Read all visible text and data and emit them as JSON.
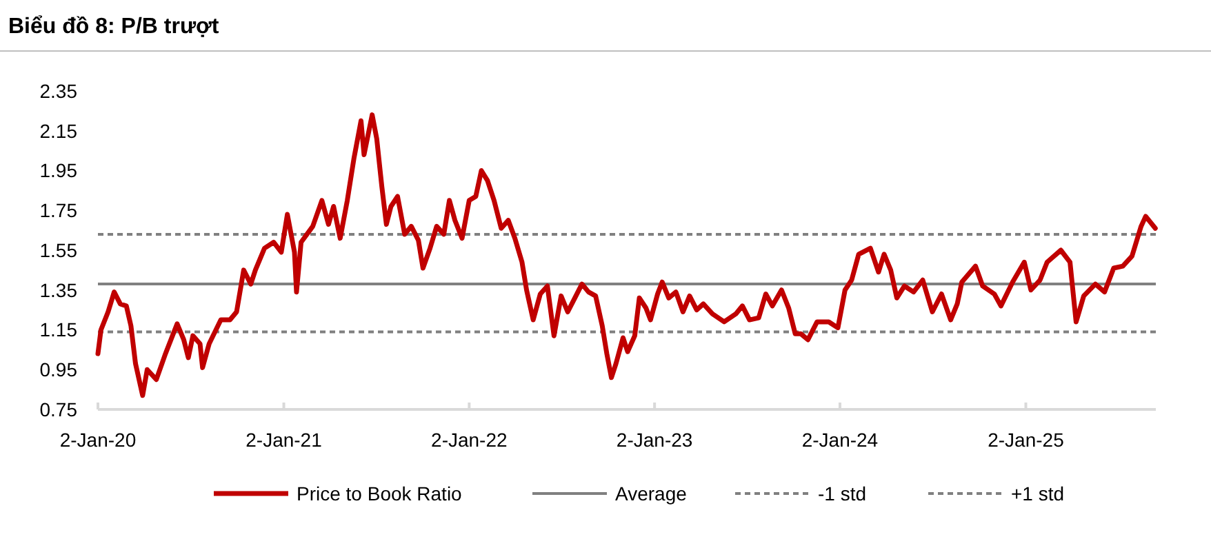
{
  "chart_data": {
    "type": "line",
    "title": "Biểu đồ 8: P/B trượt",
    "x": [
      "2020-01-02",
      "2020-01-08",
      "2020-01-22",
      "2020-02-03",
      "2020-02-15",
      "2020-02-27",
      "2020-03-07",
      "2020-03-16",
      "2020-03-30",
      "2020-04-08",
      "2020-04-26",
      "2020-05-14",
      "2020-06-06",
      "2020-06-19",
      "2020-06-28",
      "2020-07-07",
      "2020-07-21",
      "2020-07-26",
      "2020-08-08",
      "2020-08-31",
      "2020-09-18",
      "2020-10-01",
      "2020-10-15",
      "2020-10-29",
      "2020-11-07",
      "2020-11-25",
      "2020-12-13",
      "2020-12-28",
      "2021-01-09",
      "2021-01-23",
      "2021-01-27",
      "2021-02-05",
      "2021-02-28",
      "2021-03-18",
      "2021-03-31",
      "2021-04-10",
      "2021-04-23",
      "2021-05-07",
      "2021-05-20",
      "2021-06-03",
      "2021-06-09",
      "2021-06-25",
      "2021-07-04",
      "2021-07-14",
      "2021-07-23",
      "2021-08-01",
      "2021-08-14",
      "2021-08-28",
      "2021-09-10",
      "2021-09-24",
      "2021-10-03",
      "2021-10-17",
      "2021-10-30",
      "2021-11-13",
      "2021-11-24",
      "2021-12-05",
      "2021-12-19",
      "2022-01-02",
      "2022-01-15",
      "2022-01-26",
      "2022-02-07",
      "2022-02-20",
      "2022-03-06",
      "2022-03-20",
      "2022-04-02",
      "2022-04-16",
      "2022-04-25",
      "2022-05-08",
      "2022-05-22",
      "2022-06-05",
      "2022-06-18",
      "2022-07-02",
      "2022-07-15",
      "2022-07-29",
      "2022-08-12",
      "2022-08-25",
      "2022-09-08",
      "2022-09-21",
      "2022-09-30",
      "2022-10-09",
      "2022-10-18",
      "2022-11-01",
      "2022-11-10",
      "2022-11-24",
      "2022-12-03",
      "2022-12-16",
      "2022-12-25",
      "2023-01-08",
      "2023-01-17",
      "2023-01-30",
      "2023-02-13",
      "2023-02-27",
      "2023-03-12",
      "2023-03-26",
      "2023-04-08",
      "2023-04-26",
      "2023-05-19",
      "2023-06-11",
      "2023-06-24",
      "2023-07-08",
      "2023-07-26",
      "2023-08-09",
      "2023-08-22",
      "2023-09-09",
      "2023-09-23",
      "2023-10-06",
      "2023-10-17",
      "2023-10-31",
      "2023-11-18",
      "2023-12-11",
      "2023-12-29",
      "2024-01-12",
      "2024-01-25",
      "2024-02-08",
      "2024-03-02",
      "2024-03-18",
      "2024-03-29",
      "2024-04-11",
      "2024-04-23",
      "2024-05-08",
      "2024-05-26",
      "2024-06-13",
      "2024-07-02",
      "2024-07-20",
      "2024-08-07",
      "2024-08-20",
      "2024-08-29",
      "2024-09-25",
      "2024-10-09",
      "2024-11-01",
      "2024-11-14",
      "2024-12-07",
      "2024-12-30",
      "2025-01-12",
      "2025-01-30",
      "2025-02-13",
      "2025-03-12",
      "2025-03-30",
      "2025-04-11",
      "2025-04-26",
      "2025-05-19",
      "2025-06-06",
      "2025-06-24",
      "2025-07-12",
      "2025-07-30",
      "2025-08-17",
      "2025-08-26",
      "2025-09-14"
    ],
    "series": [
      {
        "name": "Price to Book Ratio",
        "color": "#c00000",
        "values": [
          1.03,
          1.15,
          1.24,
          1.34,
          1.28,
          1.27,
          1.17,
          0.98,
          0.82,
          0.95,
          0.9,
          1.03,
          1.18,
          1.1,
          1.01,
          1.12,
          1.08,
          0.96,
          1.08,
          1.2,
          1.2,
          1.24,
          1.45,
          1.38,
          1.45,
          1.56,
          1.59,
          1.54,
          1.73,
          1.54,
          1.34,
          1.59,
          1.67,
          1.8,
          1.68,
          1.77,
          1.61,
          1.8,
          2.01,
          2.2,
          2.03,
          2.23,
          2.11,
          1.87,
          1.68,
          1.77,
          1.82,
          1.63,
          1.67,
          1.6,
          1.46,
          1.56,
          1.67,
          1.63,
          1.8,
          1.7,
          1.61,
          1.8,
          1.82,
          1.95,
          1.9,
          1.8,
          1.66,
          1.7,
          1.61,
          1.49,
          1.35,
          1.2,
          1.33,
          1.37,
          1.12,
          1.32,
          1.24,
          1.31,
          1.38,
          1.34,
          1.32,
          1.17,
          1.03,
          0.91,
          0.98,
          1.11,
          1.04,
          1.12,
          1.31,
          1.26,
          1.2,
          1.33,
          1.39,
          1.31,
          1.34,
          1.24,
          1.32,
          1.25,
          1.28,
          1.23,
          1.19,
          1.23,
          1.27,
          1.2,
          1.21,
          1.33,
          1.27,
          1.35,
          1.26,
          1.13,
          1.13,
          1.1,
          1.19,
          1.19,
          1.16,
          1.35,
          1.4,
          1.53,
          1.56,
          1.44,
          1.53,
          1.45,
          1.31,
          1.37,
          1.34,
          1.4,
          1.24,
          1.33,
          1.2,
          1.28,
          1.39,
          1.47,
          1.37,
          1.33,
          1.27,
          1.39,
          1.49,
          1.35,
          1.4,
          1.49,
          1.55,
          1.49,
          1.19,
          1.32,
          1.38,
          1.34,
          1.46,
          1.47,
          1.52,
          1.67,
          1.72,
          1.66
        ]
      }
    ],
    "xlim": [
      "2020-01-02",
      "2025-09-15"
    ],
    "xticks": [
      {
        "value": "2020-01-02",
        "label": "2-Jan-20"
      },
      {
        "value": "2021-01-02",
        "label": "2-Jan-21"
      },
      {
        "value": "2022-01-02",
        "label": "2-Jan-22"
      },
      {
        "value": "2023-01-02",
        "label": "2-Jan-23"
      },
      {
        "value": "2024-01-02",
        "label": "2-Jan-24"
      },
      {
        "value": "2025-01-02",
        "label": "2-Jan-25"
      }
    ],
    "ylim": [
      0.75,
      2.35
    ],
    "yticks": [
      0.75,
      0.95,
      1.15,
      1.35,
      1.55,
      1.75,
      1.95,
      2.15,
      2.35
    ],
    "ref_lines": [
      {
        "axis": "y",
        "value": 1.38,
        "label": "Average",
        "color": "#808080",
        "line_style": "solid"
      },
      {
        "axis": "y",
        "value": 1.14,
        "label": "-1 std",
        "color": "#808080",
        "line_style": "dashed"
      },
      {
        "axis": "y",
        "value": 1.63,
        "label": "+1 std",
        "color": "#808080",
        "line_style": "dashed"
      }
    ],
    "legend": "bottom"
  }
}
